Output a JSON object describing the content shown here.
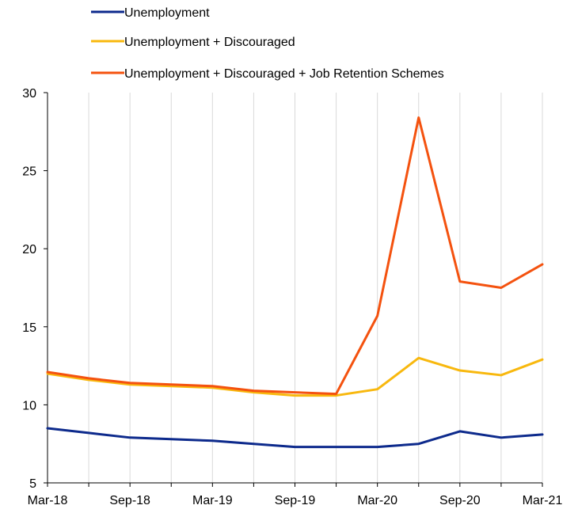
{
  "chart_data": {
    "type": "line",
    "title": "",
    "xlabel": "",
    "ylabel": "",
    "x": [
      "Mar-18",
      "Jun-18",
      "Sep-18",
      "Dec-18",
      "Mar-19",
      "Jun-19",
      "Sep-19",
      "Dec-19",
      "Mar-20",
      "Jun-20",
      "Sep-20",
      "Dec-20",
      "Mar-21"
    ],
    "x_tick_labels": [
      "Mar-18",
      "Sep-18",
      "Mar-19",
      "Sep-19",
      "Mar-20",
      "Sep-20",
      "Mar-21"
    ],
    "y_ticks": [
      5,
      10,
      15,
      20,
      25,
      30
    ],
    "ylim": [
      5,
      30
    ],
    "grid": "vertical",
    "legend_position": "top-left",
    "series": [
      {
        "name": "Unemployment",
        "color": "#0d2a8c",
        "values": [
          8.5,
          8.2,
          7.9,
          7.8,
          7.7,
          7.5,
          7.3,
          7.3,
          7.3,
          7.5,
          8.3,
          7.9,
          8.1
        ]
      },
      {
        "name": "Unemployment + Discouraged",
        "color": "#f8b80e",
        "values": [
          12.0,
          11.6,
          11.3,
          11.2,
          11.1,
          10.8,
          10.6,
          10.6,
          11.0,
          13.0,
          12.2,
          11.9,
          12.9
        ]
      },
      {
        "name": "Unemployment + Discouraged + Job Retention Schemes",
        "color": "#f4520f",
        "values": [
          12.1,
          11.7,
          11.4,
          11.3,
          11.2,
          10.9,
          10.8,
          10.7,
          15.7,
          28.4,
          17.9,
          17.5,
          19.0
        ]
      }
    ]
  }
}
